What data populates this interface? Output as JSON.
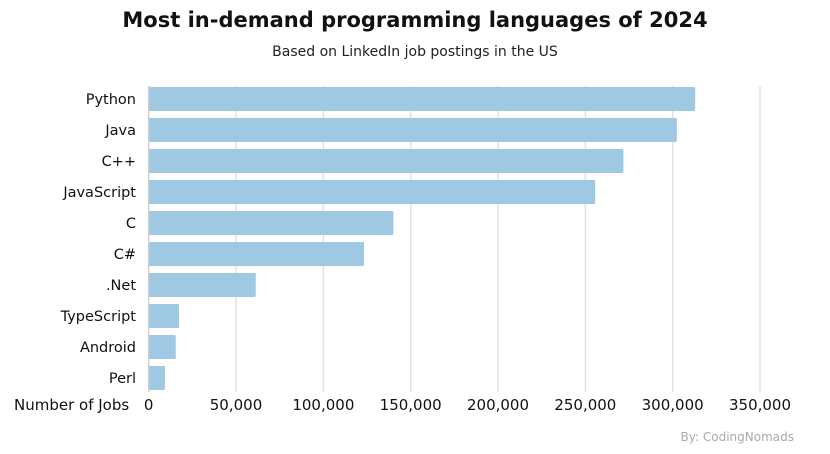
{
  "chart_data": {
    "type": "bar",
    "orientation": "horizontal",
    "title": "Most in-demand programming languages of 2024",
    "subtitle": "Based on LinkedIn job postings in the US",
    "xlabel": "Number of Jobs",
    "ylabel": "",
    "categories": [
      "Python",
      "Java",
      "C++",
      "JavaScript",
      "C",
      "C#",
      ".Net",
      "TypeScript",
      "Android",
      "Perl"
    ],
    "values": [
      312900,
      302400,
      271800,
      255600,
      140100,
      123300,
      61300,
      17400,
      15500,
      9300
    ],
    "xlim": [
      0,
      350000
    ],
    "xticks": [
      0,
      50000,
      100000,
      150000,
      200000,
      250000,
      300000,
      350000
    ],
    "xtick_labels": [
      "0",
      "50,000",
      "100,000",
      "150,000",
      "200,000",
      "250,000",
      "300,000",
      "350,000"
    ],
    "grid": "vertical",
    "bar_color": "#9fc8e3",
    "source": "By: CodingNomads"
  }
}
